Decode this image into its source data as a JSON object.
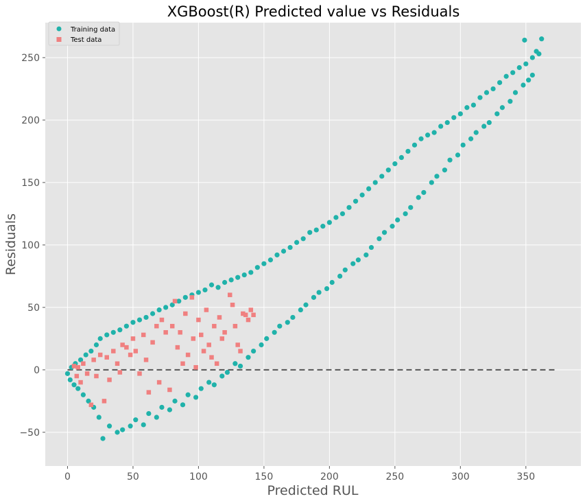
{
  "chart_data": {
    "type": "scatter",
    "title": "XGBoost(R) Predicted value vs Residuals",
    "xlabel": "Predicted RUL",
    "ylabel": "Residuals",
    "xlim": [
      -17,
      392
    ],
    "ylim": [
      -77,
      278
    ],
    "xticks": [
      0,
      50,
      100,
      150,
      200,
      250,
      300,
      350
    ],
    "yticks": [
      -50,
      0,
      50,
      100,
      150,
      200,
      250
    ],
    "ytick_labels": [
      "−50",
      "0",
      "50",
      "100",
      "150",
      "200",
      "250"
    ],
    "grid": true,
    "legend": "top-left",
    "background": "#e5e5e5",
    "series": [
      {
        "name": "Training data",
        "marker": "circle",
        "color": "#20b2aa",
        "points": [
          [
            0,
            -3
          ],
          [
            2,
            -8
          ],
          [
            3,
            2
          ],
          [
            5,
            -12
          ],
          [
            6,
            5
          ],
          [
            8,
            -15
          ],
          [
            10,
            8
          ],
          [
            12,
            -20
          ],
          [
            14,
            12
          ],
          [
            16,
            -25
          ],
          [
            18,
            15
          ],
          [
            20,
            -30
          ],
          [
            22,
            20
          ],
          [
            24,
            -38
          ],
          [
            25,
            25
          ],
          [
            27,
            -55
          ],
          [
            30,
            28
          ],
          [
            32,
            -45
          ],
          [
            35,
            30
          ],
          [
            38,
            -50
          ],
          [
            40,
            32
          ],
          [
            42,
            -48
          ],
          [
            45,
            35
          ],
          [
            48,
            -45
          ],
          [
            50,
            38
          ],
          [
            52,
            -40
          ],
          [
            55,
            40
          ],
          [
            58,
            -44
          ],
          [
            60,
            42
          ],
          [
            62,
            -35
          ],
          [
            65,
            45
          ],
          [
            68,
            -38
          ],
          [
            70,
            48
          ],
          [
            72,
            -30
          ],
          [
            75,
            50
          ],
          [
            78,
            -32
          ],
          [
            80,
            52
          ],
          [
            82,
            -25
          ],
          [
            85,
            55
          ],
          [
            88,
            -28
          ],
          [
            90,
            58
          ],
          [
            92,
            -20
          ],
          [
            95,
            60
          ],
          [
            98,
            -22
          ],
          [
            100,
            62
          ],
          [
            102,
            -15
          ],
          [
            105,
            64
          ],
          [
            108,
            -10
          ],
          [
            110,
            68
          ],
          [
            112,
            -12
          ],
          [
            115,
            66
          ],
          [
            118,
            -5
          ],
          [
            120,
            70
          ],
          [
            122,
            -2
          ],
          [
            125,
            72
          ],
          [
            128,
            5
          ],
          [
            130,
            74
          ],
          [
            132,
            3
          ],
          [
            135,
            76
          ],
          [
            138,
            10
          ],
          [
            140,
            78
          ],
          [
            142,
            15
          ],
          [
            145,
            82
          ],
          [
            148,
            20
          ],
          [
            150,
            85
          ],
          [
            152,
            25
          ],
          [
            155,
            88
          ],
          [
            158,
            30
          ],
          [
            160,
            92
          ],
          [
            162,
            35
          ],
          [
            165,
            95
          ],
          [
            168,
            38
          ],
          [
            170,
            98
          ],
          [
            172,
            42
          ],
          [
            175,
            102
          ],
          [
            178,
            48
          ],
          [
            180,
            105
          ],
          [
            182,
            52
          ],
          [
            185,
            110
          ],
          [
            188,
            58
          ],
          [
            190,
            112
          ],
          [
            192,
            62
          ],
          [
            195,
            115
          ],
          [
            198,
            65
          ],
          [
            200,
            118
          ],
          [
            202,
            70
          ],
          [
            205,
            122
          ],
          [
            208,
            75
          ],
          [
            210,
            125
          ],
          [
            212,
            80
          ],
          [
            215,
            130
          ],
          [
            218,
            85
          ],
          [
            220,
            135
          ],
          [
            222,
            88
          ],
          [
            225,
            140
          ],
          [
            228,
            92
          ],
          [
            230,
            145
          ],
          [
            232,
            98
          ],
          [
            235,
            150
          ],
          [
            238,
            105
          ],
          [
            240,
            155
          ],
          [
            242,
            110
          ],
          [
            245,
            160
          ],
          [
            248,
            115
          ],
          [
            250,
            165
          ],
          [
            252,
            120
          ],
          [
            255,
            170
          ],
          [
            258,
            125
          ],
          [
            260,
            175
          ],
          [
            262,
            130
          ],
          [
            265,
            180
          ],
          [
            268,
            138
          ],
          [
            270,
            185
          ],
          [
            272,
            142
          ],
          [
            275,
            188
          ],
          [
            278,
            150
          ],
          [
            280,
            190
          ],
          [
            282,
            155
          ],
          [
            285,
            195
          ],
          [
            288,
            160
          ],
          [
            290,
            198
          ],
          [
            292,
            168
          ],
          [
            295,
            202
          ],
          [
            298,
            172
          ],
          [
            300,
            205
          ],
          [
            302,
            180
          ],
          [
            305,
            210
          ],
          [
            308,
            185
          ],
          [
            310,
            212
          ],
          [
            312,
            190
          ],
          [
            315,
            218
          ],
          [
            318,
            195
          ],
          [
            320,
            222
          ],
          [
            322,
            198
          ],
          [
            325,
            225
          ],
          [
            328,
            205
          ],
          [
            330,
            230
          ],
          [
            332,
            210
          ],
          [
            335,
            235
          ],
          [
            338,
            215
          ],
          [
            340,
            238
          ],
          [
            342,
            222
          ],
          [
            345,
            242
          ],
          [
            348,
            228
          ],
          [
            350,
            245
          ],
          [
            352,
            232
          ],
          [
            355,
            250
          ],
          [
            358,
            255
          ],
          [
            360,
            253
          ],
          [
            362,
            265
          ],
          [
            349,
            264
          ],
          [
            355,
            236
          ]
        ]
      },
      {
        "name": "Test data",
        "marker": "square",
        "color": "#f08080",
        "points": [
          [
            5,
            3
          ],
          [
            7,
            -5
          ],
          [
            8,
            2
          ],
          [
            10,
            -10
          ],
          [
            12,
            5
          ],
          [
            15,
            -3
          ],
          [
            18,
            -28
          ],
          [
            20,
            8
          ],
          [
            22,
            -5
          ],
          [
            25,
            12
          ],
          [
            28,
            -25
          ],
          [
            30,
            10
          ],
          [
            32,
            -8
          ],
          [
            35,
            15
          ],
          [
            38,
            5
          ],
          [
            40,
            -2
          ],
          [
            42,
            20
          ],
          [
            45,
            18
          ],
          [
            48,
            12
          ],
          [
            50,
            25
          ],
          [
            52,
            15
          ],
          [
            55,
            -3
          ],
          [
            58,
            28
          ],
          [
            60,
            8
          ],
          [
            62,
            -18
          ],
          [
            65,
            22
          ],
          [
            68,
            35
          ],
          [
            70,
            -10
          ],
          [
            72,
            40
          ],
          [
            75,
            30
          ],
          [
            78,
            -16
          ],
          [
            80,
            35
          ],
          [
            82,
            55
          ],
          [
            84,
            18
          ],
          [
            86,
            30
          ],
          [
            88,
            5
          ],
          [
            90,
            45
          ],
          [
            92,
            12
          ],
          [
            95,
            58
          ],
          [
            96,
            25
          ],
          [
            98,
            2
          ],
          [
            100,
            40
          ],
          [
            102,
            28
          ],
          [
            104,
            15
          ],
          [
            106,
            48
          ],
          [
            108,
            20
          ],
          [
            110,
            10
          ],
          [
            112,
            35
          ],
          [
            114,
            5
          ],
          [
            116,
            42
          ],
          [
            118,
            25
          ],
          [
            120,
            30
          ],
          [
            124,
            60
          ],
          [
            126,
            52
          ],
          [
            128,
            35
          ],
          [
            130,
            20
          ],
          [
            132,
            15
          ],
          [
            134,
            45
          ],
          [
            136,
            44
          ],
          [
            138,
            40
          ],
          [
            140,
            48
          ],
          [
            142,
            44
          ]
        ]
      }
    ],
    "reference_line": {
      "y": 0,
      "x_range": [
        0,
        372
      ],
      "style": "dashed",
      "color": "#555555"
    }
  }
}
